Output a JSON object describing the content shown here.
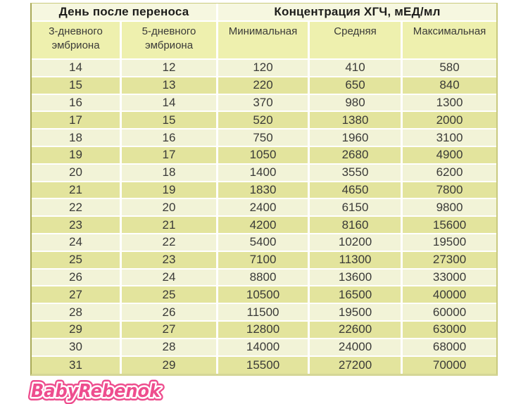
{
  "chart_data": {
    "type": "table",
    "header_groups": [
      {
        "label": "День после переноса",
        "colspan": 2
      },
      {
        "label": "Концентрация ХГЧ, мЕД/мл",
        "colspan": 3
      }
    ],
    "columns": [
      "3-дневного эмбриона",
      "5-дневного эмбриона",
      "Минимальная",
      "Средняя",
      "Максимальная"
    ],
    "rows": [
      [
        14,
        12,
        120,
        410,
        580
      ],
      [
        15,
        13,
        220,
        650,
        840
      ],
      [
        16,
        14,
        370,
        980,
        1300
      ],
      [
        17,
        15,
        520,
        1380,
        2000
      ],
      [
        18,
        16,
        750,
        1960,
        3100
      ],
      [
        19,
        17,
        1050,
        2680,
        4900
      ],
      [
        20,
        18,
        1400,
        3550,
        6200
      ],
      [
        21,
        19,
        1830,
        4650,
        7800
      ],
      [
        22,
        20,
        2400,
        6150,
        9800
      ],
      [
        23,
        21,
        4200,
        8160,
        15600
      ],
      [
        24,
        22,
        5400,
        10200,
        19500
      ],
      [
        25,
        23,
        7100,
        11300,
        27300
      ],
      [
        26,
        24,
        8800,
        13600,
        33000
      ],
      [
        27,
        25,
        10500,
        16500,
        40000
      ],
      [
        28,
        26,
        11500,
        19500,
        60000
      ],
      [
        29,
        27,
        12800,
        22600,
        63000
      ],
      [
        30,
        28,
        14000,
        24000,
        68000
      ],
      [
        31,
        29,
        15500,
        27200,
        70000
      ]
    ]
  },
  "watermark": {
    "text": "BabyRebenok",
    "fill_color": "#ee4d8e",
    "outline_color": "#ffffff"
  },
  "colors": {
    "page_bg": "#ffffff",
    "header_top_bg": "#f6f7e0",
    "header_sub_bg": "#eef0ae",
    "row_light_bg": "#f2f3d7",
    "row_dark_bg": "#e3e49d",
    "grid_line": "#ffffff",
    "border_left": "#a9aa58",
    "border_outer": "#c9ca7e",
    "border_bottom": "#d5d696",
    "header_text": "#1d1d1b",
    "cell_text": "#3a3a38"
  }
}
